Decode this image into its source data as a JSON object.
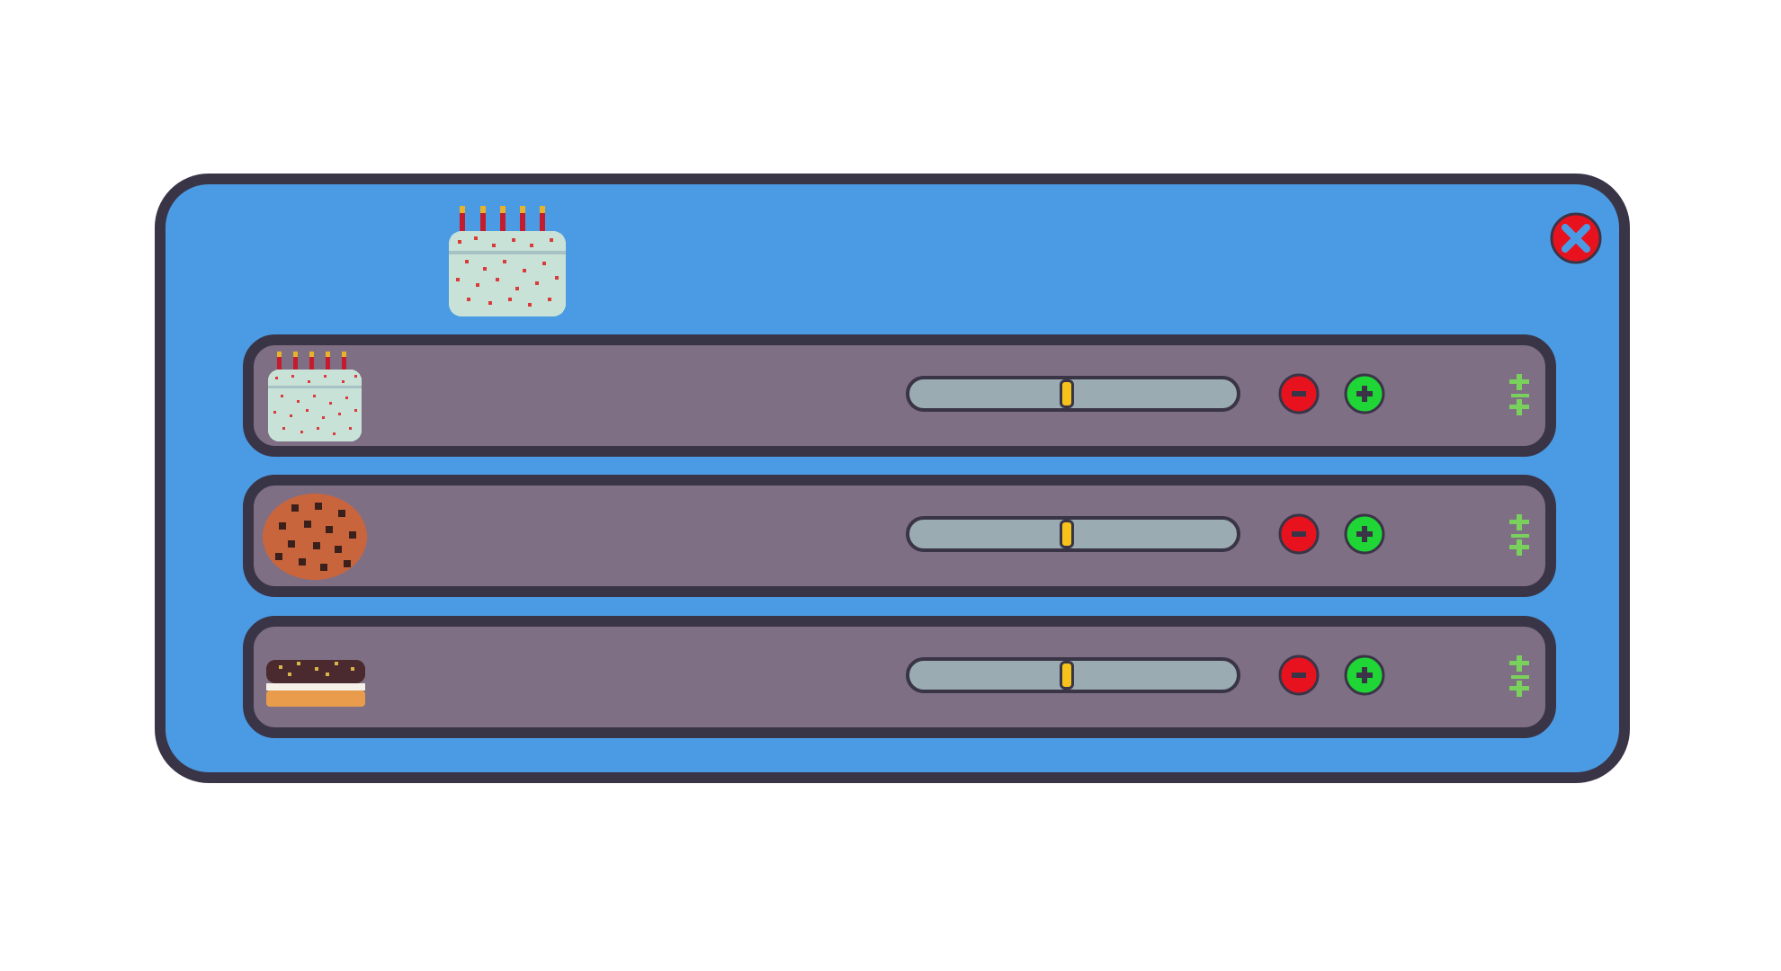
{
  "window": {
    "header_icon": "birthday-cake-icon",
    "close_icon": "close-icon",
    "colors": {
      "panel": "#4b9be4",
      "border": "#3a3447",
      "row": "#7e6f85",
      "track": "#9aabb1",
      "thumb": "#f6c21c",
      "minus": "#e8121f",
      "plus": "#1fd636",
      "reorder": "#7ad05c"
    }
  },
  "rows": [
    {
      "icon": "birthday-cake-icon",
      "slider_value": 0.48,
      "minus_icon": "minus-icon",
      "plus_icon": "plus-icon",
      "reorder_icon": "reorder-icon"
    },
    {
      "icon": "cookie-icon",
      "slider_value": 0.48,
      "minus_icon": "minus-icon",
      "plus_icon": "plus-icon",
      "reorder_icon": "reorder-icon"
    },
    {
      "icon": "doughnut-icon",
      "slider_value": 0.48,
      "minus_icon": "minus-icon",
      "plus_icon": "plus-icon",
      "reorder_icon": "reorder-icon"
    }
  ]
}
